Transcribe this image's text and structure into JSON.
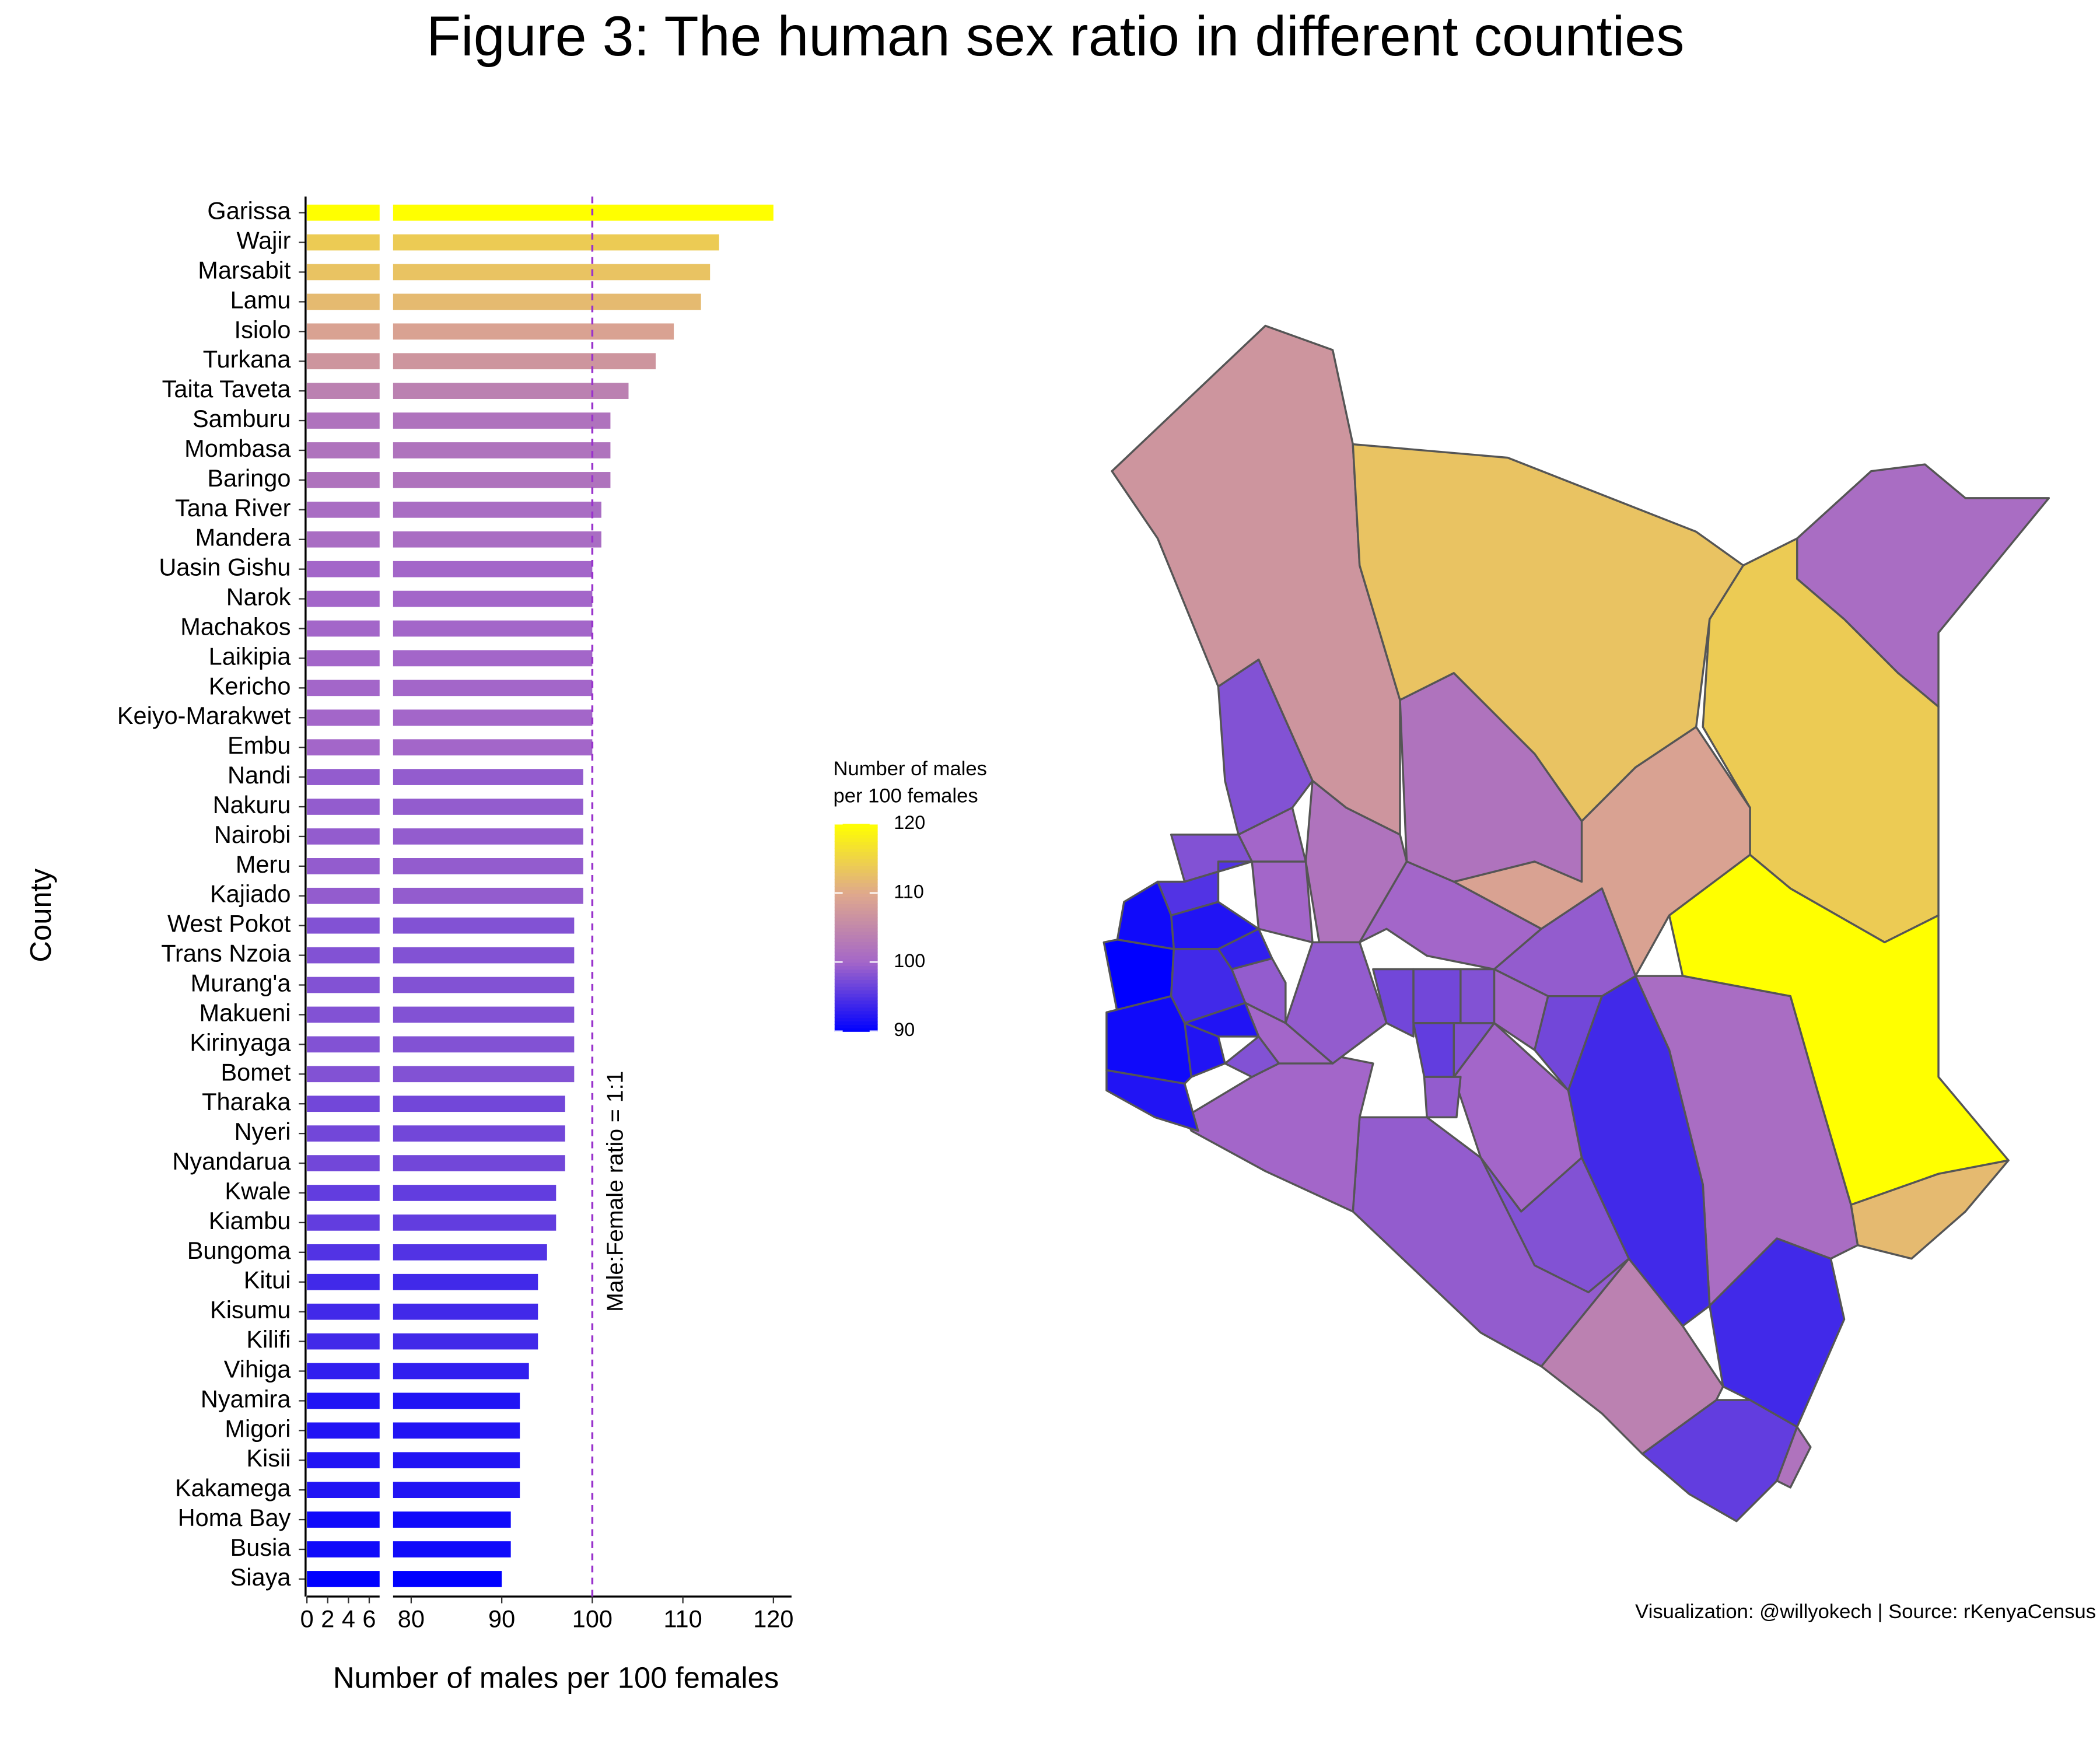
{
  "chart_data": {
    "type": "bar",
    "title": "Figure 3: The human sex ratio in different counties",
    "caption": "Visualization: @willyokech | Source: rKenyaCensus",
    "x_label": "Number of males per 100 females",
    "y_label": "County",
    "categories": [
      "Garissa",
      "Wajir",
      "Marsabit",
      "Lamu",
      "Isiolo",
      "Turkana",
      "Taita Taveta",
      "Samburu",
      "Mombasa",
      "Baringo",
      "Tana River",
      "Mandera",
      "Uasin Gishu",
      "Narok",
      "Machakos",
      "Laikipia",
      "Kericho",
      "Keiyo-Marakwet",
      "Embu",
      "Nandi",
      "Nakuru",
      "Nairobi",
      "Meru",
      "Kajiado",
      "West Pokot",
      "Trans Nzoia",
      "Murang'a",
      "Makueni",
      "Kirinyaga",
      "Bomet",
      "Tharaka",
      "Nyeri",
      "Nyandarua",
      "Kwale",
      "Kiambu",
      "Bungoma",
      "Kitui",
      "Kisumu",
      "Kilifi",
      "Vihiga",
      "Nyamira",
      "Migori",
      "Kisii",
      "Kakamega",
      "Homa Bay",
      "Busia",
      "Siaya"
    ],
    "values": [
      120,
      114,
      113,
      112,
      109,
      107,
      104,
      102,
      102,
      102,
      101,
      101,
      100,
      100,
      100,
      100,
      100,
      100,
      100,
      99,
      99,
      99,
      99,
      99,
      98,
      98,
      98,
      98,
      98,
      98,
      97,
      97,
      97,
      96,
      96,
      95,
      94,
      94,
      94,
      93,
      92,
      92,
      92,
      92,
      91,
      91,
      90
    ],
    "xlim_break": [
      0,
      7
    ],
    "xticks_break": [
      0,
      2,
      4,
      6
    ],
    "xlim": [
      78,
      122
    ],
    "xticks": [
      80,
      90,
      100,
      110,
      120
    ],
    "ref_line": {
      "value": 100,
      "label": "Male:Female ratio = 1:1",
      "color": "#9932cc"
    },
    "colorscale": {
      "title": [
        "Number of males",
        "per 100 females"
      ],
      "lim": [
        90,
        120
      ],
      "ticks": [
        90,
        100,
        110,
        120
      ],
      "colors": [
        "#0000ff",
        "#a366c9",
        "#dfa98c",
        "#ffff00"
      ]
    },
    "map_border": "#555555"
  }
}
